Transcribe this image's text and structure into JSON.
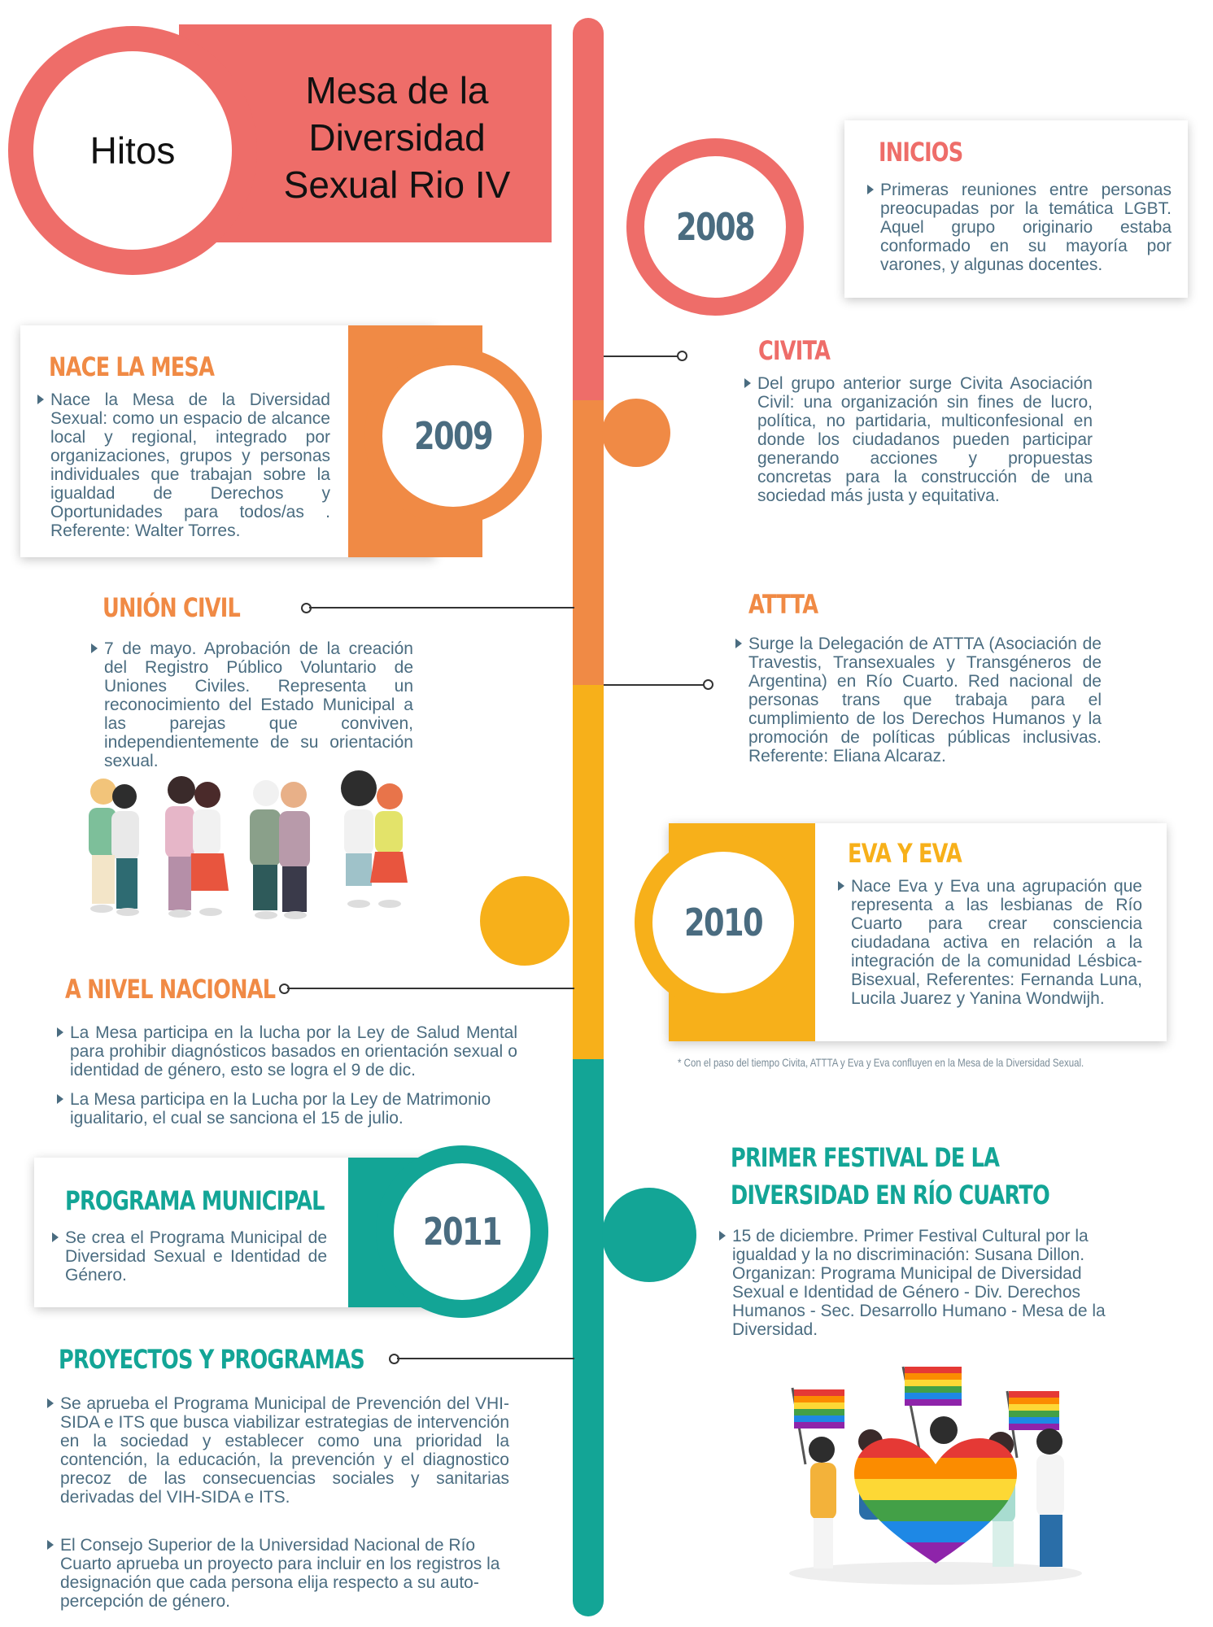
{
  "header": {
    "badge": "Hitos",
    "title_line1": "Mesa de la",
    "title_line2": "Diversidad",
    "title_line3": "Sexual Rio IV"
  },
  "colors": {
    "coral": "#ee6d69",
    "orange": "#f08a45",
    "yellow": "#f7b01a",
    "teal": "#13a596",
    "year_text": "#4a6c80",
    "body_text": "#4a6c80"
  },
  "milestones": {
    "inicios": {
      "year": "2008",
      "title": "INICIOS",
      "text": "Primeras reuniones entre personas preocupadas por la temática LGBT. Aquel grupo originario estaba conformado en su mayoría por varones, y algunas docentes."
    },
    "nace_la_mesa": {
      "year": "2009",
      "title": "NACE LA MESA",
      "text": "Nace la Mesa de la Diversidad Sexual: como un espacio de alcance local y regional, integrado por organizaciones, grupos y personas individuales que trabajan sobre la igualdad de Derechos y Oportunidades para todos/as . Referente: Walter Torres."
    },
    "civita": {
      "title": "CIVITA",
      "text": "Del grupo anterior surge Civita Asociación Civil: una organización sin fines de lucro, política, no partidaria, multiconfesional en donde los ciudadanos pueden participar generando acciones y propuestas concretas para la construcción de una sociedad más justa y equitativa."
    },
    "union_civil": {
      "title": "UNIÓN CIVIL",
      "text": "7 de mayo. Aprobación de la creación del Registro Público Voluntario de Uniones Civiles. Representa un reconocimiento del Estado Municipal a las parejas que conviven, independientemente de su orientación sexual."
    },
    "attta": {
      "title": "ATTTA",
      "text": "Surge la Delegación de ATTTA (Asociación de Travestis, Transexuales y Transgéneros de Argentina) en Río Cuarto. Red nacional de personas trans que trabaja para el cumplimiento de los Derechos Humanos y la promoción de políticas públicas inclusivas. Referente: Eliana Alcaraz."
    },
    "eva_y_eva": {
      "year": "2010",
      "title": "EVA Y EVA",
      "text": "Nace Eva y Eva una agrupación que representa a las lesbianas de Río Cuarto para crear consciencia ciudadana activa en relación a la integración de la comunidad Lésbica-Bisexual, Referentes: Fernanda Luna, Lucila Juarez y Yanina Wondwijh."
    },
    "footnote": "* Con el paso del tiempo Civita, ATTTA y Eva y Eva confluyen en la Mesa de la Diversidad Sexual.",
    "nivel_nacional": {
      "title": "A NIVEL NACIONAL",
      "text1": "La Mesa participa en la lucha por la Ley de Salud Mental para prohibir diagnósticos basados en orientación sexual o identidad de género, esto se logra el 9 de dic.",
      "text2": "La Mesa participa en la Lucha por la Ley de Matrimonio igualitario, el cual se sanciona el 15 de julio."
    },
    "programa_municipal": {
      "year": "2011",
      "title": "PROGRAMA MUNICIPAL",
      "text": "Se crea el Programa Municipal de Diversidad Sexual e Identidad de Género."
    },
    "festival": {
      "title_line1": "PRIMER FESTIVAL DE LA",
      "title_line2": "DIVERSIDAD EN RÍO CUARTO",
      "text": "15 de diciembre. Primer Festival Cultural por la igualdad y la no discriminación: Susana Dillon. Organizan: Programa Municipal de Diversidad Sexual e Identidad de Género - Div. Derechos Humanos - Sec. Desarrollo Humano - Mesa de la Diversidad."
    },
    "proyectos": {
      "title": "PROYECTOS Y PROGRAMAS",
      "text1": "Se aprueba el Programa Municipal de Prevención del VHI-SIDA e ITS que busca viabilizar estrategias de intervención en la sociedad y establecer como una prioridad la contención, la educación, la prevención y el diagnostico precoz de las consecuencias sociales y sanitarias derivadas del VIH-SIDA e ITS.",
      "text2": "El Consejo Superior de la Universidad Nacional de Río Cuarto aprueba un proyecto para incluir en los registros la designación que cada persona elija respecto a su auto-percepción de género."
    }
  }
}
